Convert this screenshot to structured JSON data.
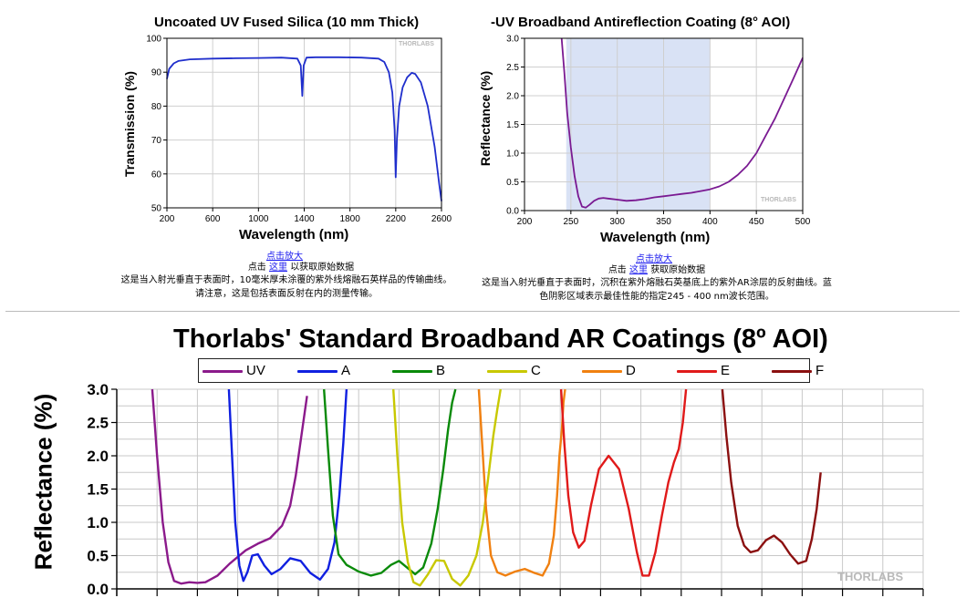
{
  "charts": {
    "top_left": {
      "title": "Uncoated UV Fused Silica (10 mm Thick)",
      "xlabel": "Wavelength (nm)",
      "ylabel": "Transmission (%)",
      "watermark": "THORLABS",
      "zoom_link": "点击放大",
      "caption_click": "点击",
      "caption_here": "这里",
      "caption_rest": "以获取原始数据",
      "caption_text": "这是当入射光垂直于表面时，10毫米厚未涂覆的紫外线熔融石英样品的传输曲线。请注意，这是包括表面反射在内的测量传输。"
    },
    "top_right": {
      "title": "-UV Broadband Antireflection Coating (8° AOI)",
      "xlabel": "Wavelength (nm)",
      "ylabel": "Reflectance (%)",
      "watermark": "THORLABS",
      "zoom_link": "点击放大",
      "caption_click": "点击",
      "caption_here": "这里",
      "caption_rest": "获取原始数据",
      "caption_text": "这是当入射光垂直于表面时，沉积在紫外熔融石英基底上的紫外AR涂层的反射曲线。蓝色阴影区域表示最佳性能的指定245 - 400 nm波长范围。"
    },
    "bottom": {
      "title": "Thorlabs' Standard Broadband AR Coatings (8º AOI)",
      "ylabel": "Reflectance (%)",
      "watermark": "THORLABS"
    }
  },
  "chart_data": [
    {
      "type": "line",
      "title": "Uncoated UV Fused Silica (10 mm Thick)",
      "xlabel": "Wavelength (nm)",
      "ylabel": "Transmission (%)",
      "xlim": [
        200,
        2600
      ],
      "ylim": [
        50,
        100
      ],
      "xticks": [
        200,
        600,
        1000,
        1400,
        1800,
        2200,
        2600
      ],
      "yticks": [
        50,
        60,
        70,
        80,
        90,
        100
      ],
      "grid": true,
      "color": "#1f2ecc",
      "series": [
        {
          "x": [
            200,
            220,
            260,
            300,
            400,
            600,
            800,
            1000,
            1200,
            1340,
            1370,
            1383,
            1395,
            1420,
            1500,
            1700,
            1900,
            2050,
            2100,
            2140,
            2170,
            2190,
            2200,
            2210,
            2230,
            2260,
            2300,
            2340,
            2370,
            2420,
            2480,
            2540,
            2580,
            2600
          ],
          "y": [
            88,
            91,
            92.6,
            93.3,
            93.8,
            94,
            94.1,
            94.2,
            94.3,
            94,
            92,
            83,
            92,
            94.3,
            94.4,
            94.4,
            94.3,
            94,
            93,
            90,
            84,
            73,
            59,
            70,
            80,
            85.5,
            88.5,
            89.8,
            89.5,
            87,
            80,
            68,
            57,
            52
          ]
        }
      ]
    },
    {
      "type": "line",
      "title": "-UV Broadband Antireflection Coating (8° AOI)",
      "xlabel": "Wavelength (nm)",
      "ylabel": "Reflectance (%)",
      "xlim": [
        200,
        500
      ],
      "ylim": [
        0,
        3
      ],
      "xticks": [
        200,
        250,
        300,
        350,
        400,
        450,
        500
      ],
      "yticks": [
        0,
        0.5,
        1.0,
        1.5,
        2.0,
        2.5,
        3.0
      ],
      "grid": true,
      "shaded_region": [
        245,
        400
      ],
      "shade_color": "#d9e2f5",
      "color": "#7a1a92",
      "series": [
        {
          "x": [
            240,
            243,
            246,
            250,
            254,
            258,
            262,
            266,
            270,
            275,
            280,
            285,
            290,
            300,
            310,
            320,
            330,
            340,
            350,
            360,
            370,
            380,
            390,
            400,
            410,
            420,
            430,
            440,
            450,
            460,
            470,
            480,
            490,
            500
          ],
          "y": [
            3.0,
            2.4,
            1.7,
            1.1,
            0.6,
            0.25,
            0.07,
            0.05,
            0.1,
            0.17,
            0.21,
            0.22,
            0.21,
            0.19,
            0.17,
            0.18,
            0.2,
            0.23,
            0.25,
            0.27,
            0.29,
            0.31,
            0.34,
            0.37,
            0.42,
            0.5,
            0.62,
            0.78,
            1.0,
            1.3,
            1.6,
            1.95,
            2.3,
            2.66
          ]
        }
      ]
    },
    {
      "type": "line",
      "title": "Thorlabs' Standard Broadband AR Coatings (8º AOI)",
      "ylabel": "Reflectance (%)",
      "ylim": [
        0,
        3
      ],
      "yticks": [
        0,
        0.5,
        1.0,
        1.5,
        2.0,
        2.5,
        3.0
      ],
      "grid": true,
      "legend": "top",
      "series": [
        {
          "name": "UV",
          "color": "#8b1a8b",
          "x": [
            0.044,
            0.05,
            0.057,
            0.064,
            0.071,
            0.08,
            0.09,
            0.1,
            0.11,
            0.125,
            0.14,
            0.16,
            0.175,
            0.19,
            0.205,
            0.215,
            0.222,
            0.229,
            0.236
          ],
          "y": [
            3.0,
            2.0,
            1.0,
            0.4,
            0.12,
            0.08,
            0.1,
            0.09,
            0.1,
            0.2,
            0.38,
            0.58,
            0.68,
            0.76,
            0.95,
            1.25,
            1.7,
            2.3,
            2.9
          ]
        },
        {
          "name": "A",
          "color": "#1020e0",
          "x": [
            0.139,
            0.143,
            0.147,
            0.152,
            0.157,
            0.162,
            0.168,
            0.175,
            0.183,
            0.192,
            0.203,
            0.215,
            0.228,
            0.24,
            0.252,
            0.262,
            0.27,
            0.276,
            0.281,
            0.285
          ],
          "y": [
            3.0,
            2.0,
            1.0,
            0.35,
            0.12,
            0.25,
            0.5,
            0.52,
            0.35,
            0.22,
            0.3,
            0.46,
            0.42,
            0.24,
            0.14,
            0.3,
            0.7,
            1.4,
            2.2,
            3.0
          ]
        },
        {
          "name": "B",
          "color": "#0a8a0a",
          "x": [
            0.257,
            0.262,
            0.268,
            0.275,
            0.285,
            0.3,
            0.315,
            0.328,
            0.34,
            0.35,
            0.36,
            0.37,
            0.38,
            0.39,
            0.398,
            0.405,
            0.411,
            0.416,
            0.42
          ],
          "y": [
            3.0,
            2.1,
            1.1,
            0.52,
            0.36,
            0.26,
            0.2,
            0.24,
            0.36,
            0.42,
            0.32,
            0.22,
            0.32,
            0.68,
            1.2,
            1.8,
            2.4,
            2.8,
            3.0
          ]
        },
        {
          "name": "C",
          "color": "#c8c800",
          "x": [
            0.343,
            0.348,
            0.354,
            0.361,
            0.368,
            0.376,
            0.386,
            0.396,
            0.406,
            0.416,
            0.426,
            0.436,
            0.446,
            0.454,
            0.461,
            0.467,
            0.472,
            0.476
          ],
          "y": [
            3.0,
            2.0,
            1.0,
            0.4,
            0.1,
            0.05,
            0.22,
            0.43,
            0.42,
            0.15,
            0.05,
            0.2,
            0.5,
            1.0,
            1.7,
            2.3,
            2.7,
            3.0
          ]
        },
        {
          "name": "D",
          "color": "#f08010",
          "x": [
            0.449,
            0.453,
            0.458,
            0.464,
            0.472,
            0.482,
            0.494,
            0.506,
            0.518,
            0.528,
            0.536,
            0.542,
            0.546,
            0.549,
            0.552,
            0.554,
            0.556
          ],
          "y": [
            3.0,
            2.2,
            1.2,
            0.5,
            0.25,
            0.2,
            0.26,
            0.3,
            0.24,
            0.2,
            0.38,
            0.8,
            1.4,
            2.0,
            2.4,
            2.8,
            3.0
          ]
        },
        {
          "name": "E",
          "color": "#e01a1a",
          "x": [
            0.551,
            0.555,
            0.56,
            0.566,
            0.573,
            0.58,
            0.588,
            0.598,
            0.61,
            0.623,
            0.635,
            0.645,
            0.652,
            0.66,
            0.668,
            0.676,
            0.684,
            0.691,
            0.697,
            0.702,
            0.706
          ],
          "y": [
            3.0,
            2.2,
            1.4,
            0.85,
            0.62,
            0.72,
            1.25,
            1.8,
            2.0,
            1.8,
            1.2,
            0.55,
            0.2,
            0.2,
            0.55,
            1.1,
            1.6,
            1.9,
            2.1,
            2.5,
            3.0
          ]
        },
        {
          "name": "F",
          "color": "#8b1010",
          "x": [
            0.751,
            0.756,
            0.762,
            0.77,
            0.778,
            0.786,
            0.795,
            0.805,
            0.815,
            0.825,
            0.835,
            0.845,
            0.855,
            0.862,
            0.868,
            0.873
          ],
          "y": [
            3.0,
            2.3,
            1.6,
            0.95,
            0.65,
            0.55,
            0.58,
            0.73,
            0.8,
            0.7,
            0.52,
            0.38,
            0.42,
            0.75,
            1.2,
            1.75
          ]
        }
      ]
    }
  ]
}
